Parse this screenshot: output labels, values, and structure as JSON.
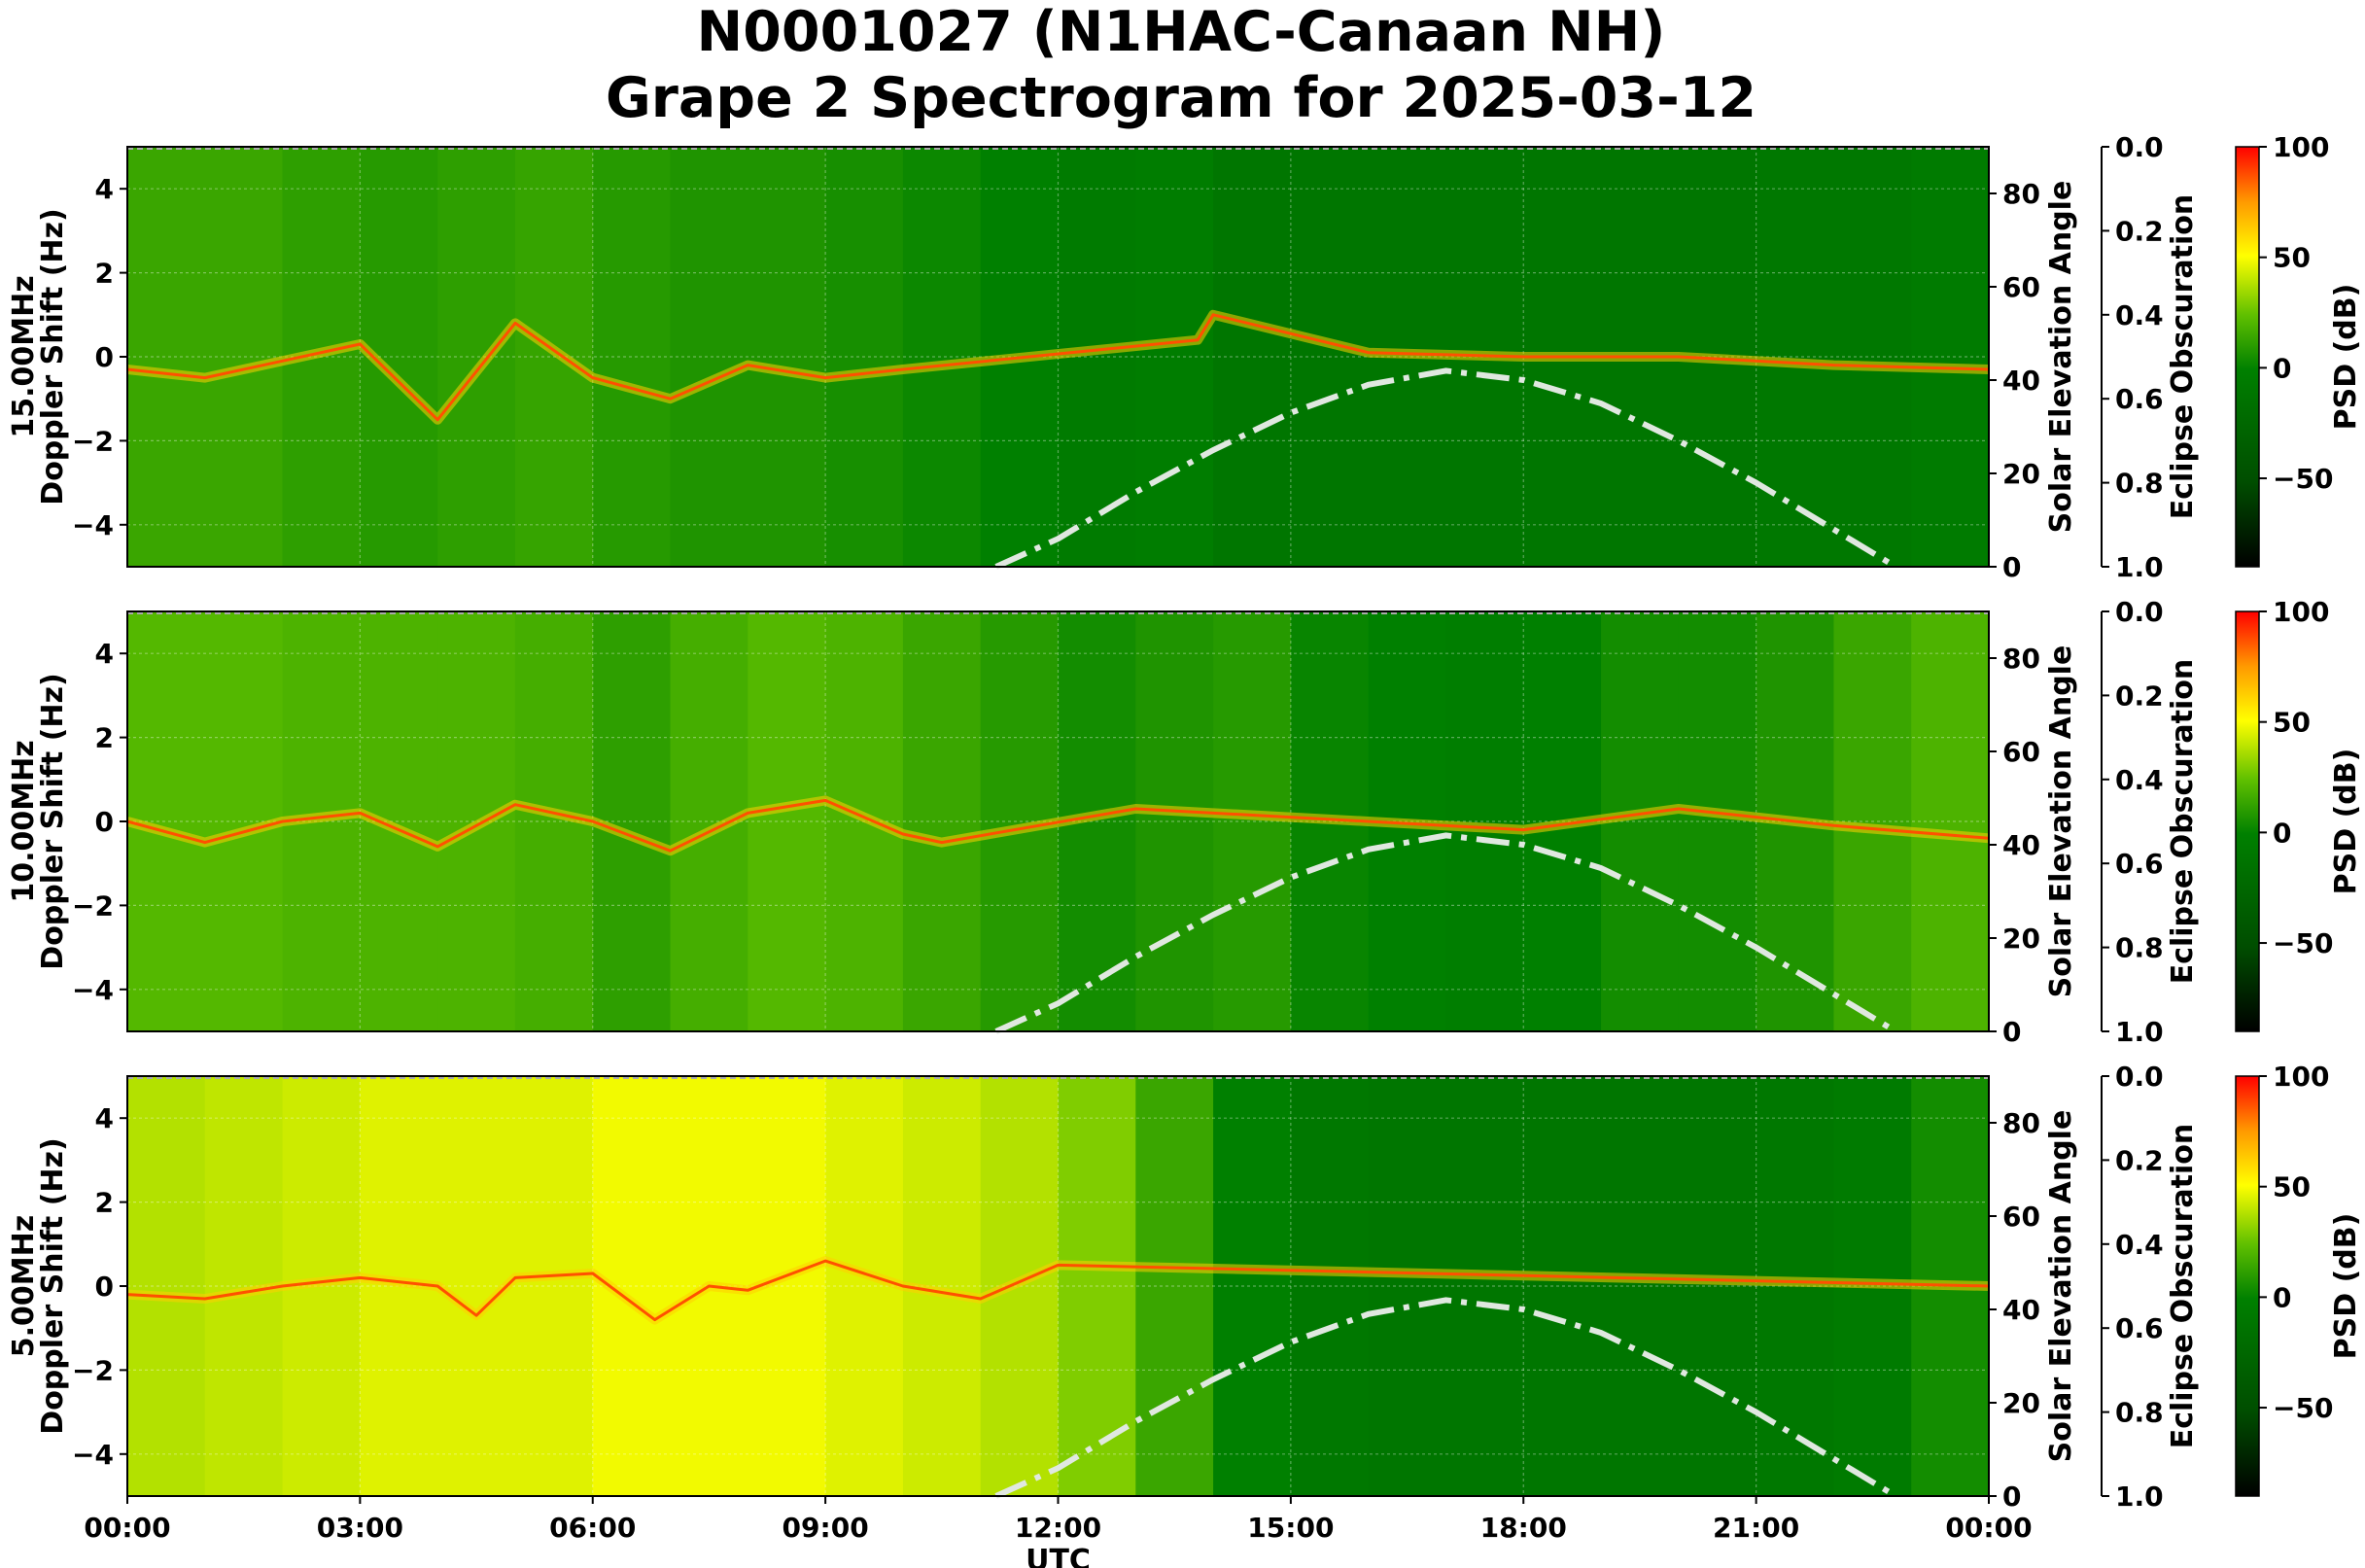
{
  "figure": {
    "title_line1": "N0001027 (N1HAC-Canaan NH)",
    "title_line2": "Grape 2 Spectrogram for 2025-03-12"
  },
  "chart_data": [
    {
      "type": "heatmap",
      "frequency_label": "15.00MHz",
      "ylabel": "Doppler Shift (Hz)",
      "xlabel": "",
      "ylim": [
        -5,
        5
      ],
      "yticks": [
        4,
        2,
        0,
        -2,
        -4
      ],
      "xlim": [
        "00:00",
        "24:00"
      ],
      "grid": true,
      "secondary_y1": {
        "label": "Solar Elevation Angle",
        "range": [
          0,
          90
        ],
        "ticks": [
          80,
          60,
          40,
          20,
          0
        ]
      },
      "secondary_y2": {
        "label": "Eclipse Obscuration",
        "range": [
          0.0,
          1.0
        ],
        "ticks": [
          "0.0",
          "0.2",
          "0.4",
          "0.6",
          "0.8",
          "1.0"
        ]
      },
      "colorbar": {
        "label": "PSD (dB)",
        "range": [
          -90,
          100
        ],
        "ticks": [
          100,
          50,
          0,
          -50
        ]
      },
      "solar_elevation": {
        "x_hours": [
          11.2,
          12,
          13,
          14,
          15,
          16,
          17,
          18,
          19,
          20,
          21,
          22,
          22.8
        ],
        "values": [
          0,
          6,
          16,
          25,
          33,
          39,
          42,
          40,
          35,
          27,
          18,
          8,
          0
        ]
      },
      "doppler_trace": {
        "x_hours": [
          0,
          1,
          2,
          3,
          4,
          5,
          6,
          7,
          8,
          9,
          10,
          13.8,
          14,
          16,
          18,
          20,
          22,
          24
        ],
        "values": [
          -0.3,
          -0.5,
          -0.1,
          0.3,
          -1.5,
          0.8,
          -0.5,
          -1.0,
          -0.2,
          -0.5,
          -0.3,
          0.4,
          1.0,
          0.1,
          0.0,
          0.0,
          -0.2,
          -0.3
        ]
      },
      "background_psd_by_hour": [
        15,
        15,
        12,
        10,
        12,
        14,
        10,
        8,
        8,
        6,
        3,
        0,
        -5,
        -3,
        -10,
        -10,
        -10,
        -10,
        -10,
        -10,
        -10,
        -8,
        -8,
        -5
      ]
    },
    {
      "type": "heatmap",
      "frequency_label": "10.00MHz",
      "ylabel": "Doppler Shift (Hz)",
      "xlabel": "",
      "ylim": [
        -5,
        5
      ],
      "yticks": [
        4,
        2,
        0,
        -2,
        -4
      ],
      "xlim": [
        "00:00",
        "24:00"
      ],
      "grid": true,
      "secondary_y1": {
        "label": "Solar Elevation Angle",
        "range": [
          0,
          90
        ],
        "ticks": [
          80,
          60,
          40,
          20,
          0
        ]
      },
      "secondary_y2": {
        "label": "Eclipse Obscuration",
        "range": [
          0.0,
          1.0
        ],
        "ticks": [
          "0.0",
          "0.2",
          "0.4",
          "0.6",
          "0.8",
          "1.0"
        ]
      },
      "colorbar": {
        "label": "PSD (dB)",
        "range": [
          -90,
          100
        ],
        "ticks": [
          100,
          50,
          0,
          -50
        ]
      },
      "solar_elevation": {
        "x_hours": [
          11.2,
          12,
          13,
          14,
          15,
          16,
          17,
          18,
          19,
          20,
          21,
          22,
          22.8
        ],
        "values": [
          0,
          6,
          16,
          25,
          33,
          39,
          42,
          40,
          35,
          27,
          18,
          8,
          0
        ]
      },
      "doppler_trace": {
        "x_hours": [
          0,
          1,
          2,
          3,
          4,
          5,
          6,
          7,
          8,
          9,
          10,
          10.5,
          13,
          16,
          18,
          20,
          22,
          24
        ],
        "values": [
          0.0,
          -0.5,
          0.0,
          0.2,
          -0.6,
          0.4,
          0.0,
          -0.7,
          0.2,
          0.5,
          -0.3,
          -0.5,
          0.3,
          0.0,
          -0.2,
          0.3,
          -0.1,
          -0.4
        ]
      },
      "background_psd_by_hour": [
        22,
        22,
        20,
        20,
        20,
        18,
        12,
        18,
        22,
        20,
        15,
        10,
        5,
        8,
        10,
        2,
        0,
        -2,
        0,
        5,
        5,
        8,
        15,
        20
      ]
    },
    {
      "type": "heatmap",
      "frequency_label": "5.00MHz",
      "ylabel": "Doppler Shift (Hz)",
      "xlabel": "UTC",
      "ylim": [
        -5,
        5
      ],
      "yticks": [
        4,
        2,
        0,
        -2,
        -4
      ],
      "xlim": [
        "00:00",
        "24:00"
      ],
      "xticks": [
        "00:00",
        "03:00",
        "06:00",
        "09:00",
        "12:00",
        "15:00",
        "18:00",
        "21:00",
        "00:00"
      ],
      "grid": true,
      "secondary_y1": {
        "label": "Solar Elevation Angle",
        "range": [
          0,
          90
        ],
        "ticks": [
          80,
          60,
          40,
          20,
          0
        ]
      },
      "secondary_y2": {
        "label": "Eclipse Obscuration",
        "range": [
          0.0,
          1.0
        ],
        "ticks": [
          "0.0",
          "0.2",
          "0.4",
          "0.6",
          "0.8",
          "1.0"
        ]
      },
      "colorbar": {
        "label": "PSD (dB)",
        "range": [
          -90,
          100
        ],
        "ticks": [
          100,
          50,
          0,
          -50
        ]
      },
      "solar_elevation": {
        "x_hours": [
          11.2,
          12,
          13,
          14,
          15,
          16,
          17,
          18,
          19,
          20,
          21,
          22,
          22.8
        ],
        "values": [
          0,
          6,
          16,
          25,
          33,
          39,
          42,
          40,
          35,
          27,
          18,
          8,
          0
        ]
      },
      "doppler_trace": {
        "x_hours": [
          0,
          1,
          2,
          3,
          4,
          4.5,
          5,
          6,
          6.8,
          7.5,
          8,
          9,
          10,
          11,
          12,
          24
        ],
        "values": [
          -0.2,
          -0.3,
          0.0,
          0.2,
          0.0,
          -0.7,
          0.2,
          0.3,
          -0.8,
          0.0,
          -0.1,
          0.6,
          0.0,
          -0.3,
          0.5,
          0.0
        ]
      },
      "background_psd_by_hour": [
        38,
        40,
        42,
        45,
        45,
        45,
        48,
        48,
        48,
        45,
        42,
        38,
        30,
        15,
        0,
        -8,
        -10,
        -10,
        -10,
        -10,
        -10,
        -8,
        -5,
        5
      ]
    }
  ]
}
